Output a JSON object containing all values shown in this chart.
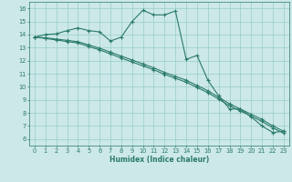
{
  "xlabel": "Humidex (Indice chaleur)",
  "xlim": [
    -0.5,
    23.5
  ],
  "ylim": [
    5.5,
    16.5
  ],
  "xticks": [
    0,
    1,
    2,
    3,
    4,
    5,
    6,
    7,
    8,
    9,
    10,
    11,
    12,
    13,
    14,
    15,
    16,
    17,
    18,
    19,
    20,
    21,
    22,
    23
  ],
  "yticks": [
    6,
    7,
    8,
    9,
    10,
    11,
    12,
    13,
    14,
    15,
    16
  ],
  "bg_color": "#cce8e8",
  "grid_color": "#99cccc",
  "line_color": "#2a7a6a",
  "s1_x": [
    0,
    1,
    2,
    3,
    4,
    5,
    6,
    7,
    8,
    9,
    10,
    11,
    12,
    13,
    14,
    15,
    16,
    17,
    18,
    19,
    20,
    21,
    22,
    23
  ],
  "s1_y": [
    13.8,
    14.0,
    14.05,
    14.3,
    14.5,
    14.3,
    14.2,
    13.5,
    13.8,
    15.0,
    15.85,
    15.5,
    15.5,
    15.8,
    12.1,
    12.4,
    10.5,
    9.3,
    8.3,
    8.3,
    7.7,
    7.0,
    6.5,
    6.6
  ],
  "s2_x": [
    0,
    1,
    2,
    3,
    4,
    5,
    6,
    7,
    8,
    9,
    10,
    11,
    12,
    13,
    14,
    15,
    16,
    17,
    18,
    19,
    20,
    21,
    22,
    23
  ],
  "s2_y": [
    13.8,
    13.75,
    13.65,
    13.55,
    13.45,
    13.2,
    12.95,
    12.65,
    12.35,
    12.05,
    11.75,
    11.45,
    11.1,
    10.8,
    10.5,
    10.1,
    9.7,
    9.2,
    8.7,
    8.3,
    7.9,
    7.5,
    7.0,
    6.6
  ],
  "s3_x": [
    0,
    1,
    2,
    3,
    4,
    5,
    6,
    7,
    8,
    9,
    10,
    11,
    12,
    13,
    14,
    15,
    16,
    17,
    18,
    19,
    20,
    21,
    22,
    23
  ],
  "s3_y": [
    13.8,
    13.7,
    13.58,
    13.46,
    13.35,
    13.08,
    12.82,
    12.52,
    12.2,
    11.9,
    11.6,
    11.3,
    10.95,
    10.65,
    10.35,
    9.95,
    9.55,
    9.05,
    8.55,
    8.15,
    7.75,
    7.35,
    6.85,
    6.45
  ]
}
